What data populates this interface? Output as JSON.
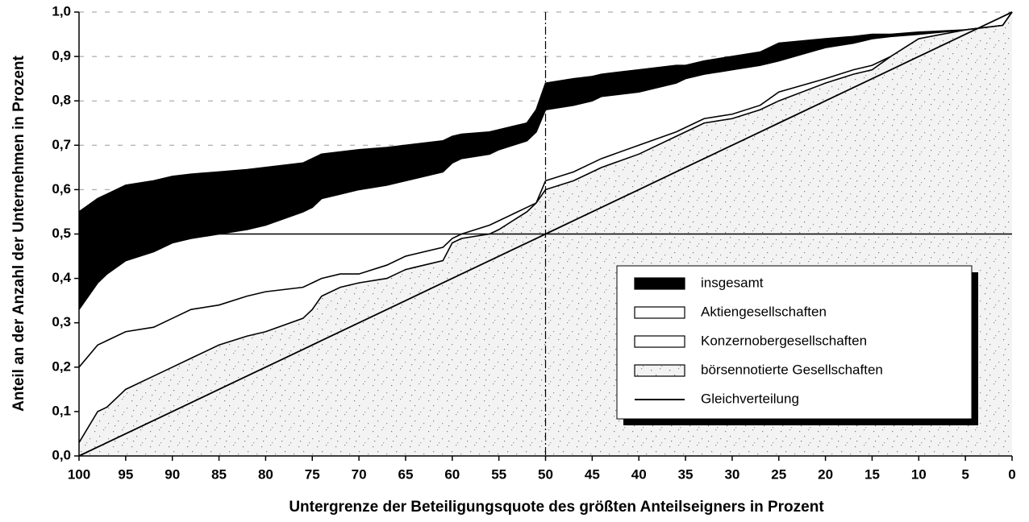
{
  "chart_data": {
    "type": "area",
    "x_label": "Untergrenze der Beteiligungsquote des größten Anteilseigners in Prozent",
    "y_label": "Anteil an der Anzahl der Unternehmen in Prozent",
    "x": [
      100,
      98,
      97,
      95,
      92,
      90,
      88,
      85,
      82,
      80,
      76,
      75,
      74,
      72,
      70,
      67,
      65,
      61,
      60,
      59,
      56,
      55,
      52,
      51,
      50,
      47,
      45,
      44,
      40,
      36,
      35,
      33,
      30,
      27,
      25,
      20,
      17,
      15,
      13,
      10,
      5,
      1,
      0
    ],
    "series": [
      {
        "name": "insgesamt",
        "style": "area",
        "color": "#000000",
        "values": [
          0.55,
          0.58,
          0.59,
          0.61,
          0.62,
          0.63,
          0.635,
          0.64,
          0.645,
          0.65,
          0.66,
          0.67,
          0.68,
          0.685,
          0.69,
          0.695,
          0.7,
          0.71,
          0.72,
          0.725,
          0.73,
          0.735,
          0.75,
          0.78,
          0.84,
          0.85,
          0.855,
          0.86,
          0.87,
          0.88,
          0.88,
          0.89,
          0.9,
          0.91,
          0.93,
          0.94,
          0.945,
          0.95,
          0.95,
          0.955,
          0.96,
          0.97,
          1.0
        ]
      },
      {
        "name": "Aktiengesellschaften",
        "style": "area",
        "color": "#ffffff",
        "values": [
          0.33,
          0.39,
          0.41,
          0.44,
          0.46,
          0.48,
          0.49,
          0.5,
          0.51,
          0.52,
          0.55,
          0.56,
          0.58,
          0.59,
          0.6,
          0.61,
          0.62,
          0.64,
          0.66,
          0.67,
          0.68,
          0.69,
          0.71,
          0.73,
          0.78,
          0.79,
          0.8,
          0.81,
          0.82,
          0.84,
          0.85,
          0.86,
          0.87,
          0.88,
          0.89,
          0.92,
          0.93,
          0.94,
          0.945,
          0.95,
          0.96,
          0.97,
          1.0
        ]
      },
      {
        "name": "Konzernobergesellschaften",
        "style": "area",
        "color": "#ffffff",
        "values": [
          0.2,
          0.25,
          0.26,
          0.28,
          0.29,
          0.31,
          0.33,
          0.34,
          0.36,
          0.37,
          0.38,
          0.39,
          0.4,
          0.41,
          0.41,
          0.43,
          0.45,
          0.47,
          0.49,
          0.5,
          0.52,
          0.53,
          0.56,
          0.57,
          0.62,
          0.64,
          0.66,
          0.67,
          0.7,
          0.73,
          0.74,
          0.76,
          0.77,
          0.79,
          0.82,
          0.85,
          0.87,
          0.88,
          0.9,
          0.93,
          0.96,
          0.97,
          1.0
        ]
      },
      {
        "name": "börsennotierte Gesellschaften",
        "style": "area",
        "color": "dotted",
        "values": [
          0.03,
          0.1,
          0.11,
          0.15,
          0.18,
          0.2,
          0.22,
          0.25,
          0.27,
          0.28,
          0.31,
          0.33,
          0.36,
          0.38,
          0.39,
          0.4,
          0.42,
          0.44,
          0.48,
          0.49,
          0.5,
          0.51,
          0.55,
          0.57,
          0.6,
          0.62,
          0.64,
          0.65,
          0.68,
          0.72,
          0.73,
          0.75,
          0.76,
          0.78,
          0.8,
          0.84,
          0.86,
          0.87,
          0.9,
          0.94,
          0.96,
          0.97,
          1.0
        ]
      },
      {
        "name": "Gleichverteilung",
        "style": "line",
        "color": "#000000",
        "values": [
          0,
          0.02,
          0.03,
          0.05,
          0.08,
          0.1,
          0.12,
          0.15,
          0.18,
          0.2,
          0.24,
          0.25,
          0.26,
          0.28,
          0.3,
          0.33,
          0.35,
          0.39,
          0.4,
          0.41,
          0.44,
          0.45,
          0.48,
          0.49,
          0.5,
          0.53,
          0.55,
          0.56,
          0.6,
          0.64,
          0.65,
          0.67,
          0.7,
          0.73,
          0.75,
          0.8,
          0.83,
          0.85,
          0.87,
          0.9,
          0.95,
          0.99,
          1.0
        ]
      }
    ],
    "reference_lines": {
      "x": 50,
      "y": 0.5
    },
    "xlim": [
      100,
      0
    ],
    "xticks": [
      100,
      95,
      90,
      85,
      80,
      75,
      70,
      65,
      60,
      55,
      50,
      45,
      40,
      35,
      30,
      25,
      20,
      15,
      10,
      5,
      0
    ],
    "ylim": [
      0,
      1
    ],
    "yticks": [
      {
        "value": 0,
        "label": "0,0"
      },
      {
        "value": 0.1,
        "label": "0,1"
      },
      {
        "value": 0.2,
        "label": "0,2"
      },
      {
        "value": 0.3,
        "label": "0,3"
      },
      {
        "value": 0.4,
        "label": "0,4"
      },
      {
        "value": 0.5,
        "label": "0,5"
      },
      {
        "value": 0.6,
        "label": "0,6"
      },
      {
        "value": 0.7,
        "label": "0,7"
      },
      {
        "value": 0.8,
        "label": "0,8"
      },
      {
        "value": 0.9,
        "label": "0,9"
      },
      {
        "value": 1,
        "label": "1,0"
      }
    ],
    "grid": true
  }
}
